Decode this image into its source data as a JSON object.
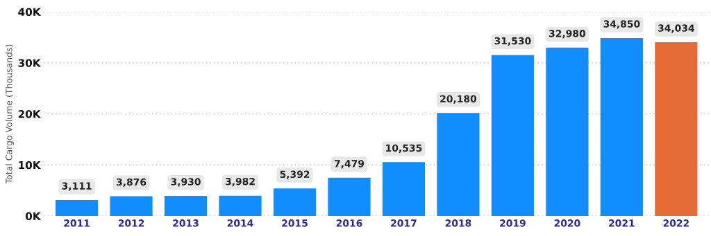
{
  "chart_data": {
    "type": "bar",
    "ylabel": "Total Cargo Volume (Thousands)",
    "categories": [
      "2011",
      "2012",
      "2013",
      "2014",
      "2015",
      "2016",
      "2017",
      "2018",
      "2019",
      "2020",
      "2021",
      "2022"
    ],
    "values": [
      3111,
      3876,
      3930,
      3982,
      5392,
      7479,
      10535,
      20180,
      31530,
      32980,
      34850,
      34034
    ],
    "value_labels": [
      "3,111",
      "3,876",
      "3,930",
      "3,982",
      "5,392",
      "7,479",
      "10,535",
      "20,180",
      "31,530",
      "32,980",
      "34,850",
      "34,034"
    ],
    "colors": [
      "#118dff",
      "#118dff",
      "#118dff",
      "#118dff",
      "#118dff",
      "#118dff",
      "#118dff",
      "#118dff",
      "#118dff",
      "#118dff",
      "#118dff",
      "#e66c37"
    ],
    "ylim": [
      0,
      40000
    ],
    "yticks": [
      {
        "value": 0,
        "label": "0K"
      },
      {
        "value": 10000,
        "label": "10K"
      },
      {
        "value": 20000,
        "label": "20K"
      },
      {
        "value": 30000,
        "label": "30K"
      },
      {
        "value": 40000,
        "label": "40K"
      }
    ],
    "grid": "y"
  }
}
